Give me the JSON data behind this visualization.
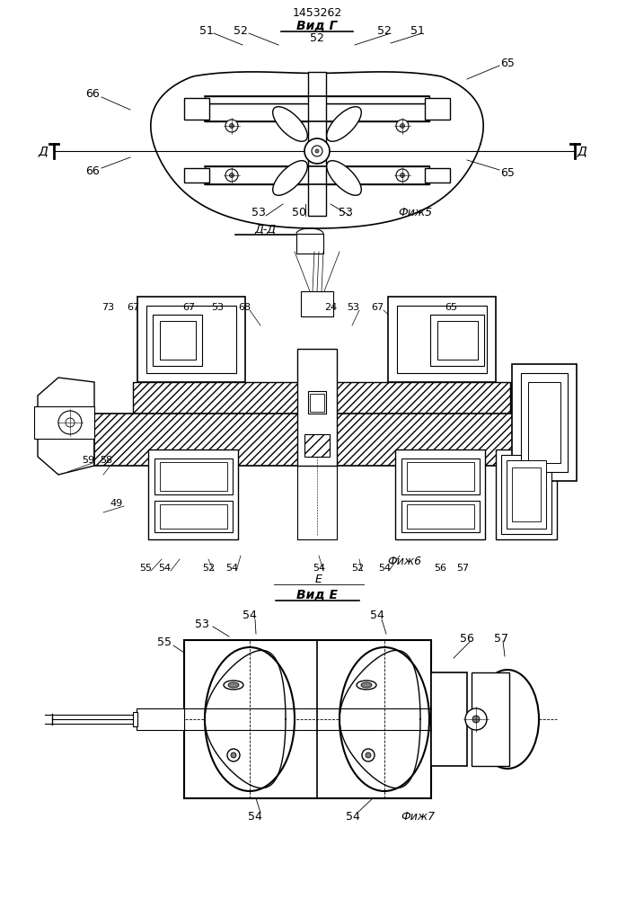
{
  "title": "1453262",
  "bg_color": "#ffffff",
  "line_color": "#000000",
  "fig5_caption": "Фиж5",
  "fig6_caption": "Фиж6",
  "fig7_caption": "Фиж7",
  "section_dd": "Д-Д",
  "view_e": "Вид Е",
  "view_g": "Вид Г"
}
